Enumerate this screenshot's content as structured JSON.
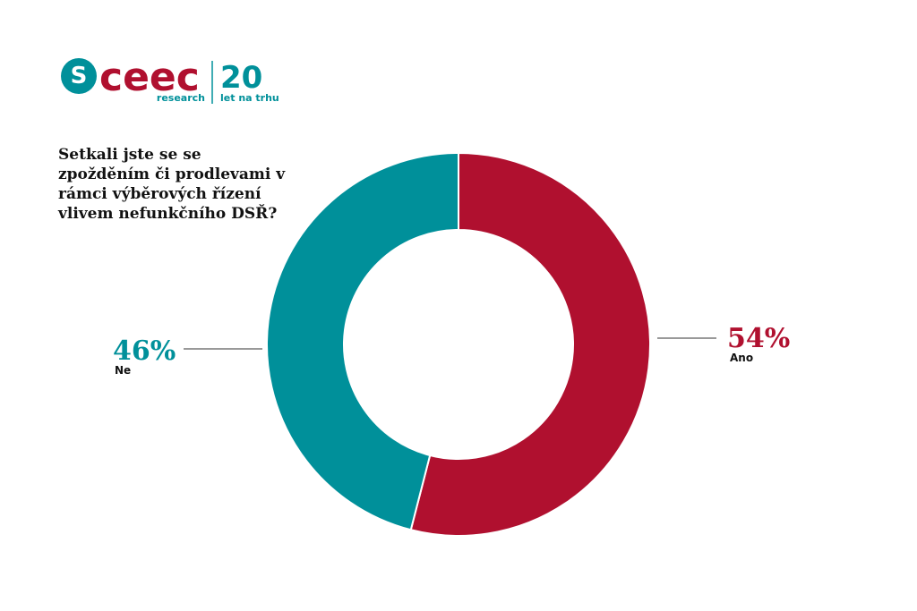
{
  "logo": {
    "brand": "ceec",
    "sub": "research",
    "years": "20",
    "years_sub": "let na trhu"
  },
  "chart_data": {
    "type": "donut",
    "title": "Setkali jste se se zpožděním či prodlevami v rámci výběrových řízení vlivem nefunkčního DSŘ?",
    "categories": [
      "Ano",
      "Ne"
    ],
    "values": [
      54,
      46
    ],
    "value_labels": [
      "54%",
      "46%"
    ],
    "colors": [
      "#b0102f",
      "#00909a"
    ]
  }
}
